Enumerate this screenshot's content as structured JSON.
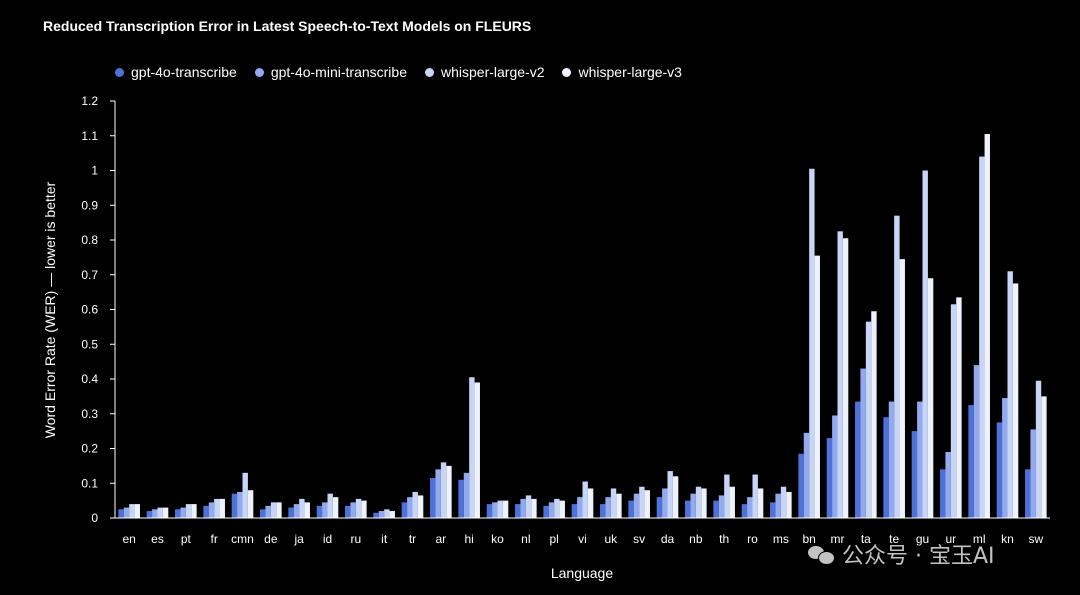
{
  "chart_data": {
    "type": "bar",
    "title": "Reduced Transcription Error in Latest Speech-to-Text Models on FLEURS",
    "xlabel": "Language",
    "ylabel": "Word Error Rate (WER) — lower is better",
    "ylim": [
      0,
      1.2
    ],
    "yticks": [
      "0",
      "0.1",
      "0.2",
      "0.3",
      "0.4",
      "0.5",
      "0.6",
      "0.7",
      "0.8",
      "0.9",
      "1",
      "1.1",
      "1.2"
    ],
    "legend_position": "top-left",
    "grid": false,
    "categories": [
      "en",
      "es",
      "pt",
      "fr",
      "cmn",
      "de",
      "ja",
      "id",
      "ru",
      "it",
      "tr",
      "ar",
      "hi",
      "ko",
      "nl",
      "pl",
      "vi",
      "uk",
      "sv",
      "da",
      "nb",
      "th",
      "ro",
      "ms",
      "bn",
      "mr",
      "ta",
      "te",
      "gu",
      "ur",
      "ml",
      "kn",
      "sw"
    ],
    "series": [
      {
        "name": "gpt-4o-transcribe",
        "color": "#4f72d8",
        "values": [
          0.025,
          0.02,
          0.025,
          0.035,
          0.07,
          0.025,
          0.03,
          0.035,
          0.035,
          0.015,
          0.045,
          0.115,
          0.11,
          0.04,
          0.04,
          0.035,
          0.04,
          0.04,
          0.05,
          0.06,
          0.05,
          0.05,
          0.04,
          0.045,
          0.185,
          0.23,
          0.335,
          0.29,
          0.25,
          0.14,
          0.325,
          0.275,
          0.14
        ]
      },
      {
        "name": "gpt-4o-mini-transcribe",
        "color": "#93aaf0",
        "values": [
          0.03,
          0.025,
          0.03,
          0.045,
          0.075,
          0.035,
          0.04,
          0.045,
          0.045,
          0.02,
          0.06,
          0.14,
          0.13,
          0.045,
          0.055,
          0.045,
          0.06,
          0.06,
          0.07,
          0.085,
          0.07,
          0.065,
          0.06,
          0.07,
          0.245,
          0.295,
          0.43,
          0.335,
          0.335,
          0.19,
          0.44,
          0.345,
          0.255
        ]
      },
      {
        "name": "whisper-large-v2",
        "color": "#c7d5f7",
        "values": [
          0.04,
          0.03,
          0.04,
          0.055,
          0.13,
          0.045,
          0.055,
          0.07,
          0.055,
          0.025,
          0.075,
          0.16,
          0.405,
          0.05,
          0.065,
          0.055,
          0.105,
          0.085,
          0.09,
          0.135,
          0.09,
          0.125,
          0.125,
          0.09,
          1.005,
          0.825,
          0.565,
          0.87,
          1.0,
          0.615,
          1.04,
          0.71,
          0.395
        ]
      },
      {
        "name": "whisper-large-v3",
        "color": "#eef2fc",
        "values": [
          0.04,
          0.03,
          0.04,
          0.055,
          0.08,
          0.045,
          0.045,
          0.06,
          0.05,
          0.02,
          0.065,
          0.15,
          0.39,
          0.05,
          0.055,
          0.05,
          0.085,
          0.07,
          0.08,
          0.12,
          0.085,
          0.09,
          0.085,
          0.075,
          0.755,
          0.805,
          0.595,
          0.745,
          0.69,
          0.635,
          1.105,
          0.675,
          0.35
        ]
      }
    ]
  },
  "watermark": {
    "text": "公众号 · 宝玉AI",
    "icon": "wechat-icon"
  }
}
